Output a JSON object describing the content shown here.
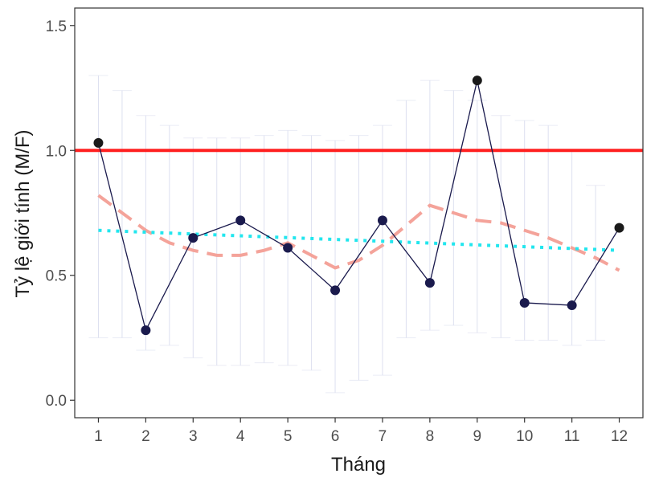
{
  "chart_data": {
    "type": "line",
    "xlabel": "Tháng",
    "ylabel": "Tỷ lệ giới tính (M/F)",
    "x": [
      1,
      2,
      3,
      4,
      5,
      6,
      7,
      8,
      9,
      10,
      11,
      12
    ],
    "x_tick_labels": [
      "1",
      "2",
      "3",
      "4",
      "5",
      "6",
      "7",
      "8",
      "9",
      "10",
      "11",
      "12"
    ],
    "y_ticks": [
      0.0,
      0.5,
      1.0,
      1.5
    ],
    "y_tick_labels": [
      "0.0",
      "0.5",
      "1.0",
      "1.5"
    ],
    "xlim": [
      0.5,
      12.5
    ],
    "ylim": [
      -0.07,
      1.57
    ],
    "grid": false,
    "series": [
      {
        "kind": "observed",
        "values": [
          1.03,
          0.28,
          0.65,
          0.72,
          0.61,
          0.44,
          0.72,
          0.47,
          1.28,
          0.39,
          0.38,
          0.69
        ],
        "line_color": "#1a1a4d",
        "marker_colors": [
          "#1a1a1a",
          "#1a1a4d",
          "#1a1a4d",
          "#1a1a4d",
          "#1a1a4d",
          "#1a1a4d",
          "#1a1a4d",
          "#1a1a4d",
          "#1a1a1a",
          "#1a1a4d",
          "#1a1a4d",
          "#1a1a1a"
        ]
      },
      {
        "kind": "smooth-trend",
        "x": [
          1,
          1.5,
          2,
          2.5,
          3,
          3.5,
          4,
          4.5,
          5,
          5.5,
          6,
          6.5,
          7,
          7.5,
          8,
          8.5,
          9,
          9.5,
          10,
          10.5,
          11,
          11.5,
          12
        ],
        "values": [
          0.82,
          0.75,
          0.68,
          0.63,
          0.6,
          0.58,
          0.58,
          0.6,
          0.63,
          0.58,
          0.53,
          0.56,
          0.62,
          0.7,
          0.78,
          0.75,
          0.72,
          0.71,
          0.68,
          0.65,
          0.61,
          0.57,
          0.52
        ],
        "color": "#f4a39a",
        "dash": "dashed"
      },
      {
        "kind": "linear-trend",
        "x": [
          1,
          12
        ],
        "values": [
          0.68,
          0.6
        ],
        "color": "#22e6ee",
        "dash": "dotted"
      }
    ],
    "reference_line": {
      "y": 1.0,
      "color": "#ff2020"
    },
    "error_bars": {
      "color": "#dde0f0",
      "x": [
        1,
        1.5,
        2,
        2.5,
        3,
        3.5,
        4,
        4.5,
        5,
        5.5,
        6,
        6.5,
        7,
        7.5,
        8,
        8.5,
        9,
        9.5,
        10,
        10.5,
        11,
        11.5
      ],
      "low": [
        0.25,
        0.25,
        0.2,
        0.22,
        0.17,
        0.14,
        0.14,
        0.15,
        0.14,
        0.12,
        0.03,
        0.08,
        0.1,
        0.25,
        0.28,
        0.3,
        0.27,
        0.25,
        0.24,
        0.24,
        0.22,
        0.24
      ],
      "high": [
        1.3,
        1.24,
        1.14,
        1.1,
        1.05,
        1.05,
        1.05,
        1.06,
        1.08,
        1.06,
        1.04,
        1.06,
        1.1,
        1.2,
        1.28,
        1.24,
        1.2,
        1.14,
        1.12,
        1.1,
        1.0,
        0.86
      ]
    }
  }
}
